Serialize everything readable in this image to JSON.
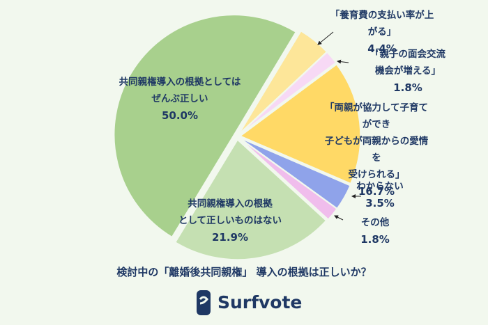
{
  "chart_data": {
    "type": "pie",
    "title": "検討中の「離婚後共同親権」 導入の根拠は正しいか？",
    "categories": [
      "「養育費の支払い率が上がる」",
      "「親子の面会交流機会が増える」",
      "「両親が協力して子育てができ\n子どもが両親からの愛情を\n受けられる」",
      "わからない",
      "その他",
      "共同親権導入の根拠\nとして正しいものはない",
      "共同親権導入の根拠としては\nぜんぶ正しい"
    ],
    "values": [
      4.4,
      1.8,
      16.7,
      3.5,
      1.8,
      21.9,
      50.0
    ],
    "value_labels": [
      "4.4%",
      "1.8%",
      "16.7%",
      "3.5%",
      "1.8%",
      "21.9%",
      "50.0%"
    ],
    "colors": [
      "#fde699",
      "#f7d9f5",
      "#ffd966",
      "#8fa3ea",
      "#f0bdec",
      "#c5e0b2",
      "#a8d08d"
    ]
  },
  "brand": "Surfvote"
}
